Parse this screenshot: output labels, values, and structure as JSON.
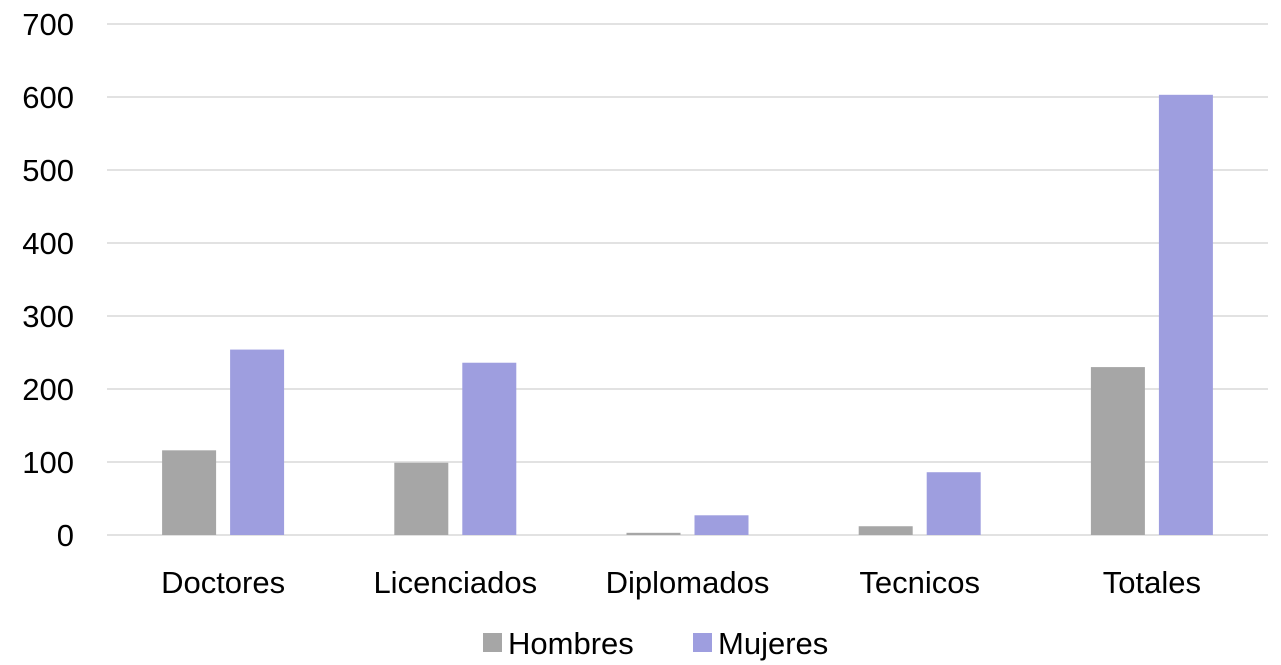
{
  "chart_data": {
    "type": "bar",
    "title": "",
    "xlabel": "",
    "ylabel": "",
    "categories": [
      "Doctores",
      "Licenciados",
      "Diplomados",
      "Tecnicos",
      "Totales"
    ],
    "series": [
      {
        "name": "Hombres",
        "color": "#a6a6a6",
        "values": [
          116,
          99,
          3,
          12,
          230
        ]
      },
      {
        "name": "Mujeres",
        "color": "#9e9edf",
        "values": [
          254,
          236,
          27,
          86,
          603
        ]
      }
    ],
    "ylim": [
      0,
      700
    ],
    "yticks": [
      "0",
      "100",
      "200",
      "300",
      "400",
      "500",
      "600",
      "700"
    ],
    "grid": true,
    "legend_position": "bottom"
  }
}
